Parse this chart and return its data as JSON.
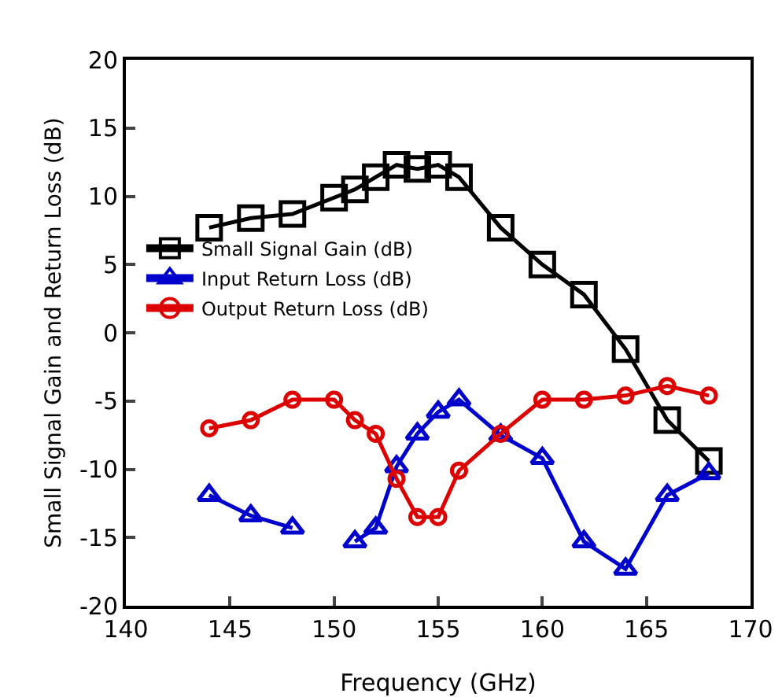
{
  "chart_data": {
    "type": "line",
    "xlabel": "Frequency (GHz)",
    "ylabel": "Small Signal Gain and Return Loss (dB)",
    "x": [
      144,
      146,
      148,
      150,
      151,
      152,
      153,
      154,
      155,
      156,
      158,
      160,
      162,
      164,
      166,
      168
    ],
    "series": [
      {
        "name": "Small Signal Gain (dB)",
        "color": "#000000",
        "marker": "square",
        "values": [
          7.7,
          8.4,
          8.7,
          9.9,
          10.5,
          11.4,
          12.3,
          12.0,
          12.3,
          11.4,
          7.7,
          5.0,
          2.8,
          -1.2,
          -6.4,
          -9.4
        ]
      },
      {
        "name": "Input Return Loss (dB)",
        "color": "#0000cc",
        "marker": "triangle",
        "values": [
          -11.9,
          -13.4,
          -14.3,
          null,
          -15.3,
          -14.3,
          -9.8,
          -7.4,
          -5.8,
          -4.9,
          -7.5,
          -9.2,
          -15.3,
          -17.3,
          -11.9,
          -10.3
        ]
      },
      {
        "name": "Output Return Loss (dB)",
        "color": "#dd0000",
        "marker": "circle",
        "values": [
          -7.0,
          -6.4,
          -4.9,
          -4.9,
          -6.4,
          -7.4,
          -10.7,
          -13.5,
          -13.5,
          -10.1,
          -7.4,
          -4.9,
          -4.9,
          -4.6,
          -3.9,
          -4.6
        ]
      }
    ],
    "xlim": [
      140,
      170
    ],
    "xticks": [
      140,
      145,
      150,
      155,
      160,
      165,
      170
    ],
    "ylim": [
      -20,
      20
    ],
    "yticks": [
      -20,
      -15,
      -10,
      -5,
      0,
      5,
      10,
      15,
      20
    ],
    "grid": false,
    "legend": "left",
    "line_style": "solid"
  }
}
